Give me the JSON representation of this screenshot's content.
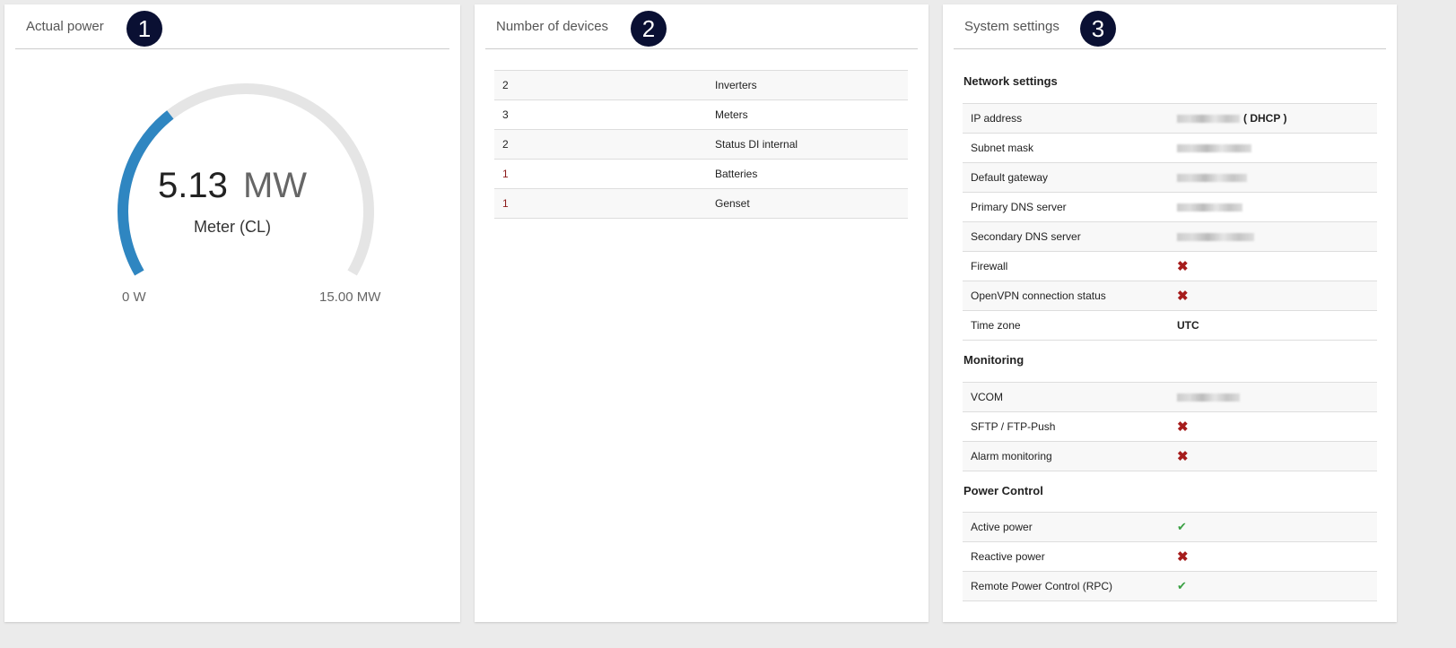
{
  "panels": {
    "power": {
      "title": "Actual power",
      "badge": "1",
      "value": "5.13",
      "unit": "MW",
      "source": "Meter (CL)",
      "min_label": "0 W",
      "max_label": "15.00 MW",
      "fraction": 0.342,
      "color": "#2f86c1",
      "track": "#e5e5e5"
    },
    "devices": {
      "title": "Number of devices",
      "badge": "2",
      "rows": [
        {
          "count": "2",
          "name": "Inverters"
        },
        {
          "count": "3",
          "name": "Meters"
        },
        {
          "count": "2",
          "name": "Status DI internal"
        },
        {
          "count": "1",
          "name": "Batteries"
        },
        {
          "count": "1",
          "name": "Genset"
        }
      ]
    },
    "system": {
      "title": "System settings",
      "badge": "3",
      "network": {
        "heading": "Network settings",
        "rows": [
          {
            "label": "IP address",
            "suffix": "( DHCP )"
          },
          {
            "label": "Subnet mask"
          },
          {
            "label": "Default gateway"
          },
          {
            "label": "Primary DNS server"
          },
          {
            "label": "Secondary DNS server"
          },
          {
            "label": "Firewall",
            "status": "cross"
          },
          {
            "label": "OpenVPN connection status",
            "status": "cross"
          },
          {
            "label": "Time zone",
            "value": "UTC"
          }
        ]
      },
      "monitoring": {
        "heading": "Monitoring",
        "rows": [
          {
            "label": "VCOM"
          },
          {
            "label": "SFTP / FTP-Push",
            "status": "cross"
          },
          {
            "label": "Alarm monitoring",
            "status": "cross"
          }
        ]
      },
      "power_control": {
        "heading": "Power Control",
        "rows": [
          {
            "label": "Active power",
            "status": "check"
          },
          {
            "label": "Reactive power",
            "status": "cross"
          },
          {
            "label": "Remote Power Control (RPC)",
            "status": "check"
          }
        ]
      }
    }
  },
  "icons": {
    "cross": "✖",
    "check": "✔"
  }
}
